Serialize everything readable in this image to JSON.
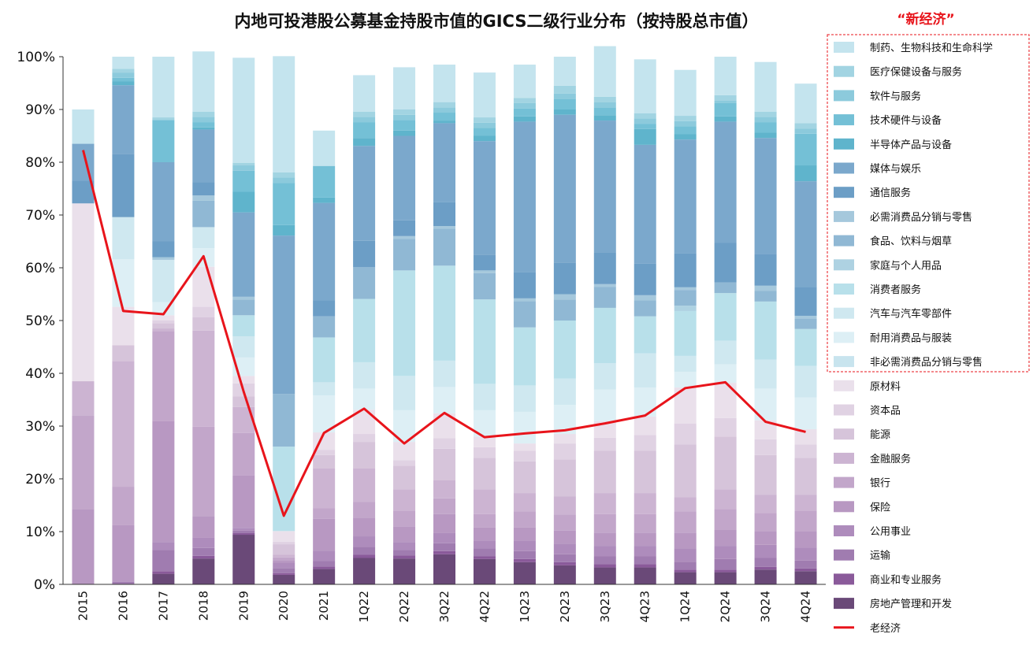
{
  "chart_data": {
    "type": "bar",
    "stacked": true,
    "title": "内地可投港股公募基金持股市值的GICS二级行业分布（按持股总市值）",
    "annotation": "“新经济”",
    "categories": [
      "2015",
      "2016",
      "2017",
      "2018",
      "2019",
      "2020",
      "2021",
      "1Q22",
      "2Q22",
      "3Q22",
      "4Q22",
      "1Q23",
      "2Q23",
      "3Q23",
      "4Q23",
      "1Q24",
      "2Q24",
      "3Q24",
      "4Q24"
    ],
    "y_ticks": [
      "0%",
      "10%",
      "20%",
      "30%",
      "40%",
      "50%",
      "60%",
      "70%",
      "80%",
      "90%",
      "100%"
    ],
    "ylim": [
      0,
      100
    ],
    "series": [
      {
        "name": "房地产管理和开发",
        "color": "#6a4978",
        "values": [
          0,
          0,
          2.0,
          4.9,
          9.4,
          1.8,
          2.9,
          5.0,
          4.9,
          5.7,
          4.8,
          4.2,
          3.6,
          3.2,
          3.2,
          2.3,
          2.3,
          2.8,
          2.5
        ]
      },
      {
        "name": "商业和专业服务",
        "color": "#8a5a9a",
        "values": [
          0,
          0,
          0.5,
          0.5,
          0.3,
          0.3,
          0.5,
          0.6,
          0.6,
          0.6,
          0.5,
          0.6,
          0.6,
          0.6,
          0.6,
          0.5,
          0.5,
          0.5,
          0.5
        ]
      },
      {
        "name": "运输",
        "color": "#a07cb0",
        "values": [
          0,
          0.5,
          4.0,
          1.5,
          0.5,
          1.0,
          1.0,
          1.5,
          1.0,
          1.5,
          1.5,
          1.5,
          1.5,
          1.5,
          1.5,
          1.5,
          2.0,
          1.7,
          1.5
        ]
      },
      {
        "name": "公用事业",
        "color": "#ae8cbc",
        "values": [
          0,
          0,
          1.5,
          2.0,
          0.5,
          1.0,
          2.0,
          2.0,
          1.5,
          2.0,
          1.5,
          2.0,
          2.0,
          2.0,
          2.0,
          2.5,
          2.5,
          2.5,
          2.5
        ]
      },
      {
        "name": "保险",
        "color": "#b898c2",
        "values": [
          14.3,
          10.7,
          23.0,
          4.0,
          10.0,
          0.5,
          6.0,
          3.5,
          3.0,
          3.5,
          2.5,
          2.5,
          2.5,
          2.5,
          2.5,
          3.0,
          3.0,
          2.5,
          3.0
        ]
      },
      {
        "name": "银行",
        "color": "#c2a6ca",
        "values": [
          17.7,
          7.3,
          17.0,
          17.0,
          8.0,
          0.5,
          2.0,
          3.0,
          3.0,
          3.0,
          2.5,
          3.0,
          3.0,
          3.5,
          3.5,
          4.0,
          4.0,
          3.5,
          4.0
        ]
      },
      {
        "name": "金融服务",
        "color": "#ccb4d2",
        "values": [
          6.5,
          23.8,
          0.5,
          18.2,
          4.9,
          0.5,
          7.6,
          6.4,
          4.0,
          3.4,
          4.7,
          3.5,
          3.5,
          4.0,
          4.0,
          2.7,
          3.7,
          3.5,
          3.0
        ]
      },
      {
        "name": "能源",
        "color": "#d6c4da",
        "values": [
          0,
          3.0,
          1.0,
          2.5,
          2.0,
          2.0,
          2.5,
          5.0,
          4.5,
          6.0,
          6.0,
          6.0,
          7.0,
          8.0,
          8.0,
          10.0,
          10.0,
          7.5,
          7.0
        ]
      },
      {
        "name": "资本品",
        "color": "#e0d2e3",
        "values": [
          0,
          0,
          0.5,
          2.0,
          2.5,
          0.5,
          1.0,
          1.5,
          1.0,
          2.0,
          2.0,
          2.0,
          3.0,
          2.5,
          3.0,
          4.0,
          3.5,
          3.0,
          2.5
        ]
      },
      {
        "name": "原材料",
        "color": "#eae0eb",
        "values": [
          33.7,
          7.3,
          1.0,
          7.6,
          1.4,
          2.0,
          3.3,
          4.6,
          3.5,
          4.7,
          2.0,
          1.4,
          1.8,
          3.1,
          3.5,
          6.8,
          6.7,
          3.6,
          2.9
        ]
      },
      {
        "name": "非必需消费品分销与零售",
        "color": "#c8e4ee",
        "values": [
          0,
          0,
          0,
          0,
          0,
          0,
          0,
          0,
          0,
          0,
          0,
          0,
          0,
          0,
          0,
          0,
          0,
          0,
          0
        ]
      },
      {
        "name": "耐用消费品与服装",
        "color": "#ddeff5",
        "values": [
          0,
          9.0,
          2.5,
          3.5,
          3.5,
          0,
          7.0,
          4.0,
          6.0,
          5.0,
          5.0,
          6.0,
          5.5,
          6.0,
          5.5,
          3.0,
          3.5,
          6.0,
          6.0
        ]
      },
      {
        "name": "汽车与汽车零部件",
        "color": "#cfe8f0",
        "values": [
          0,
          8.0,
          8.0,
          4.0,
          4.0,
          0,
          2.5,
          5.0,
          6.5,
          5.0,
          5.0,
          5.0,
          5.0,
          5.0,
          6.5,
          3.0,
          4.5,
          5.5,
          6.0
        ]
      },
      {
        "name": "消费者服务",
        "color": "#b8e0ea",
        "values": [
          0,
          0,
          0,
          0,
          4.0,
          16.0,
          8.5,
          12.0,
          20.0,
          18.0,
          16.0,
          11.0,
          11.0,
          10.5,
          7.0,
          8.5,
          9.0,
          11.0,
          7.0
        ]
      },
      {
        "name": "家庭与个人用品",
        "color": "#aed2e2",
        "values": [
          0,
          0,
          0,
          0,
          0,
          0,
          0,
          0,
          0,
          0,
          0,
          0,
          0,
          0,
          0,
          1.0,
          0,
          0,
          0
        ]
      },
      {
        "name": "食品、饮料与烟草",
        "color": "#90b8d4",
        "values": [
          0,
          0,
          0,
          5.0,
          3.0,
          10.0,
          4.0,
          6.0,
          6.0,
          7.0,
          5.0,
          5.0,
          4.0,
          4.0,
          3.0,
          3.0,
          2.0,
          2.0,
          2.0
        ]
      },
      {
        "name": "必需消费品分销与零售",
        "color": "#a5c8dc",
        "values": [
          0,
          0,
          0.5,
          1.0,
          0.5,
          0,
          0,
          0,
          0.5,
          0.5,
          0.5,
          0.5,
          1.0,
          0.5,
          1.0,
          0.5,
          0,
          1.0,
          0.5
        ]
      },
      {
        "name": "通信服务",
        "color": "#6c9ec6",
        "values": [
          4.3,
          12.0,
          3.0,
          2.5,
          0,
          0,
          3.0,
          5.0,
          3.0,
          4.5,
          3.0,
          5.0,
          6.0,
          6.0,
          6.0,
          6.5,
          7.5,
          6.0,
          5.5
        ]
      },
      {
        "name": "媒体与娱乐",
        "color": "#7ba8cc",
        "values": [
          7.0,
          13.0,
          15.0,
          10.0,
          16.0,
          30.0,
          18.5,
          18.0,
          16.0,
          15.0,
          21.5,
          28.5,
          28.0,
          25.0,
          22.5,
          21.5,
          23.0,
          22.0,
          20.0
        ]
      },
      {
        "name": "半导体产品与设备",
        "color": "#5fb4cc",
        "values": [
          0,
          0.7,
          0,
          0.4,
          3.9,
          2.0,
          1.0,
          1.5,
          1.0,
          0.5,
          1.0,
          1.0,
          1.0,
          1.0,
          3.0,
          1.0,
          1.0,
          1.0,
          3.0
        ]
      },
      {
        "name": "技术硬件与设备",
        "color": "#74c0d6",
        "values": [
          0,
          0.7,
          8.0,
          1.0,
          4.0,
          8.0,
          6.0,
          3.0,
          2.0,
          1.5,
          1.5,
          1.5,
          2.0,
          1.5,
          1.0,
          1.5,
          2.5,
          2.0,
          6.0
        ]
      },
      {
        "name": "软件与服务",
        "color": "#8ccadc",
        "values": [
          0,
          1.0,
          0,
          1.0,
          1.0,
          1.0,
          0,
          1.0,
          1.0,
          1.0,
          1.0,
          1.0,
          1.0,
          1.0,
          1.0,
          1.0,
          0.5,
          1.0,
          1.0
        ]
      },
      {
        "name": "医疗保健设备与服务",
        "color": "#a2d4e2",
        "values": [
          0,
          0.7,
          0.5,
          1.0,
          0.5,
          1.0,
          0,
          1.0,
          1.0,
          1.0,
          1.0,
          1.0,
          1.5,
          1.0,
          1.0,
          1.0,
          1.0,
          1.0,
          1.0
        ]
      },
      {
        "name": "制药、生物科技和生命科学",
        "color": "#c4e4ee",
        "values": [
          6.5,
          2.3,
          11.5,
          11.4,
          19.9,
          22.0,
          6.7,
          6.9,
          8.0,
          7.1,
          8.5,
          6.3,
          5.5,
          9.6,
          10.2,
          8.7,
          7.3,
          9.4,
          7.5
        ]
      }
    ],
    "line_series": {
      "name": "老经济",
      "color": "#e8141b",
      "values": [
        82.3,
        51.8,
        51.2,
        62.2,
        36.5,
        13.0,
        28.7,
        33.3,
        26.7,
        32.5,
        27.9,
        28.6,
        29.2,
        30.5,
        32.0,
        37.2,
        38.3,
        30.8,
        28.9
      ]
    },
    "legend": [
      "制药、生物科技和生命科学",
      "医疗保健设备与服务",
      "软件与服务",
      "技术硬件与设备",
      "半导体产品与设备",
      "媒体与娱乐",
      "通信服务",
      "必需消费品分销与零售",
      "食品、饮料与烟草",
      "家庭与个人用品",
      "消费者服务",
      "汽车与汽车零部件",
      "耐用消费品与服装",
      "非必需消费品分销与零售",
      "原材料",
      "资本品",
      "能源",
      "金融服务",
      "银行",
      "保险",
      "公用事业",
      "运输",
      "商业和专业服务",
      "房地产管理和开发",
      "老经济"
    ],
    "legend_position": "right",
    "grid": false
  }
}
